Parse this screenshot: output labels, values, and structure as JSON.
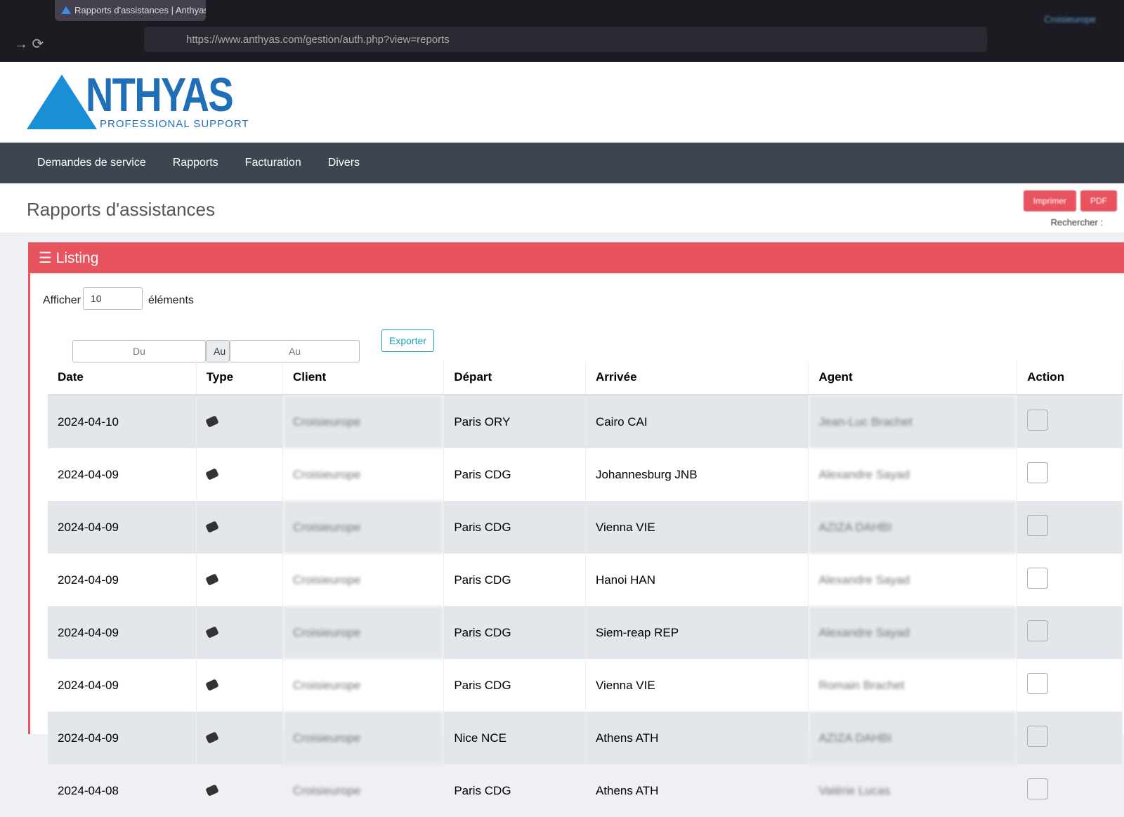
{
  "browser": {
    "tab_title": "Rapports d'assistances | Anthyas",
    "url": "https://www.anthyas.com/gestion/auth.php?view=reports",
    "user": "Croisieurope"
  },
  "header": {
    "logo": "NTHYAS",
    "tagline": "PROFESSIONAL SUPPORT"
  },
  "nav": [
    "Demandes de service",
    "Rapports",
    "Facturation",
    "Divers"
  ],
  "page": {
    "title": "Rapports d'assistances",
    "buttons": [
      "Imprimer",
      "PDF"
    ],
    "search_label": "Rechercher :"
  },
  "panel": {
    "title": "Listing",
    "show_label": "Afficher",
    "page_size": "10",
    "show_suffix": "éléments",
    "date_from": "Du",
    "date_to_addon": "Au",
    "date_to": "Au",
    "export": "Exporter"
  },
  "table": {
    "columns": [
      "Date",
      "Type",
      "Client",
      "Départ",
      "Arrivée",
      "Agent",
      "Action"
    ],
    "rows": [
      [
        "2024-04-10",
        "Croisieurope",
        "Paris ORY",
        "Cairo CAI",
        "Jean-Luc Brachet"
      ],
      [
        "2024-04-09",
        "Croisieurope",
        "Paris CDG",
        "Johannesburg JNB",
        "Alexandre Sayad"
      ],
      [
        "2024-04-09",
        "Croisieurope",
        "Paris CDG",
        "Vienna VIE",
        "AZIZA DAHBI"
      ],
      [
        "2024-04-09",
        "Croisieurope",
        "Paris CDG",
        "Hanoi HAN",
        "Alexandre Sayad"
      ],
      [
        "2024-04-09",
        "Croisieurope",
        "Paris CDG",
        "Siem-reap REP",
        "Alexandre Sayad"
      ],
      [
        "2024-04-09",
        "Croisieurope",
        "Paris CDG",
        "Vienna VIE",
        "Romain Brachet"
      ],
      [
        "2024-04-09",
        "Croisieurope",
        "Nice NCE",
        "Athens ATH",
        "AZIZA DAHBI"
      ],
      [
        "2024-04-08",
        "Croisieurope",
        "Paris CDG",
        "Athens ATH",
        "Valérie Lucas"
      ]
    ]
  }
}
